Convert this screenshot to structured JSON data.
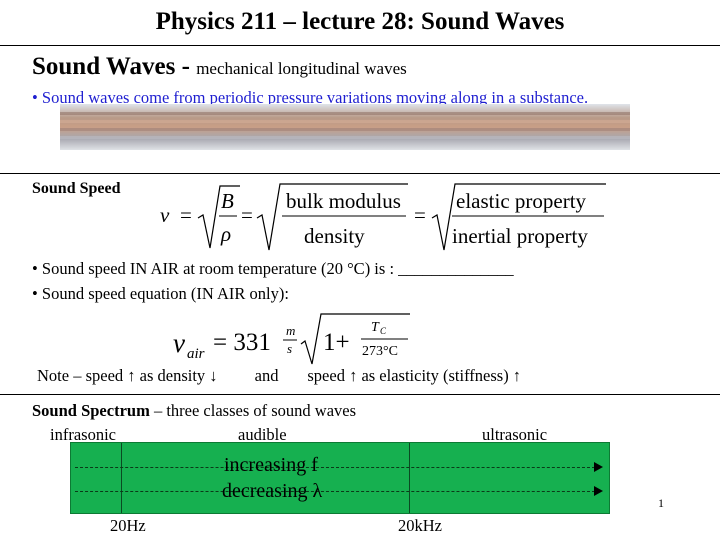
{
  "title": "Physics 211 – lecture 28: Sound Waves",
  "section1": {
    "heading": "Sound Waves - ",
    "subheading": "mechanical longitudinal waves",
    "bullet_symbol": "•",
    "bullet": "Sound waves come from periodic pressure variations moving along in a substance."
  },
  "section2": {
    "heading": "Sound Speed",
    "formula": {
      "v": "v",
      "eq": "=",
      "B": "B",
      "rho": "ρ",
      "num1": "bulk  modulus",
      "den1": "density",
      "num2": "elastic  property",
      "den2": "inertial  property"
    },
    "bullet1": "Sound speed IN AIR at room temperature (20 °C) is : ______________",
    "bullet2": "Sound speed equation (IN AIR only):",
    "air_formula": {
      "v": "v",
      "sub": "air",
      "eq": "= 331",
      "m": "m",
      "s": "s",
      "one_plus": "1+",
      "tc": "T",
      "tc_sub": "C",
      "den": "273°C"
    },
    "note": "Note – speed ↑ as density ↓         and       speed ↑ as elasticity (stiffness) ↑"
  },
  "section3": {
    "heading": "Sound Spectrum",
    "heading_rest": " – three classes of sound waves",
    "classes": [
      "infrasonic",
      "audible",
      "ultrasonic"
    ],
    "bar_line1": "increasing f",
    "bar_line2": "decreasing λ",
    "freq_low": "20Hz",
    "freq_high": "20kHz"
  },
  "page_number": "1",
  "colors": {
    "bullet_blue": "#1f1fd0",
    "spectrum_green": "#16b050"
  }
}
